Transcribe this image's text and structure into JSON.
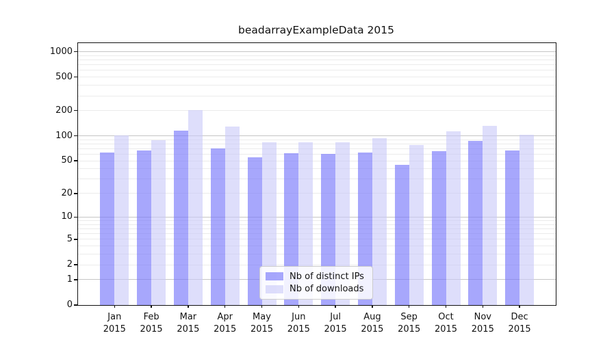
{
  "title": "beadarrayExampleData 2015",
  "chart_data": {
    "type": "bar",
    "title": "beadarrayExampleData 2015",
    "scale": "log10(1+x)",
    "categories": [
      "Jan 2015",
      "Feb 2015",
      "Mar 2015",
      "Apr 2015",
      "May 2015",
      "Jun 2015",
      "Jul 2015",
      "Aug 2015",
      "Sep 2015",
      "Oct 2015",
      "Nov 2015",
      "Dec 2015"
    ],
    "series": [
      {
        "name": "Nb of distinct IPs",
        "color": "rgba(122,122,250,0.66)",
        "values": [
          63,
          67,
          116,
          70,
          55,
          62,
          61,
          63,
          45,
          65,
          87,
          67
        ]
      },
      {
        "name": "Nb of downloads",
        "color": "rgba(202,202,249,0.62)",
        "values": [
          101,
          88,
          204,
          128,
          83,
          84,
          84,
          94,
          78,
          114,
          131,
          103
        ]
      }
    ],
    "yticks": [
      0,
      1,
      2,
      5,
      10,
      20,
      50,
      100,
      200,
      500,
      1000
    ],
    "ylim": [
      0,
      1265
    ],
    "xlabel": "",
    "ylabel": "",
    "grid": true,
    "legend_position": "inside-bottom-center"
  },
  "colors": {
    "bar_ips": "rgba(122,122,250,0.66)",
    "bar_downloads": "rgba(202,202,249,0.62)",
    "major_grid": "#c5c5c5",
    "minor_grid": "#ebebeb",
    "axis": "#111111",
    "legend_border": "#cccccc"
  }
}
